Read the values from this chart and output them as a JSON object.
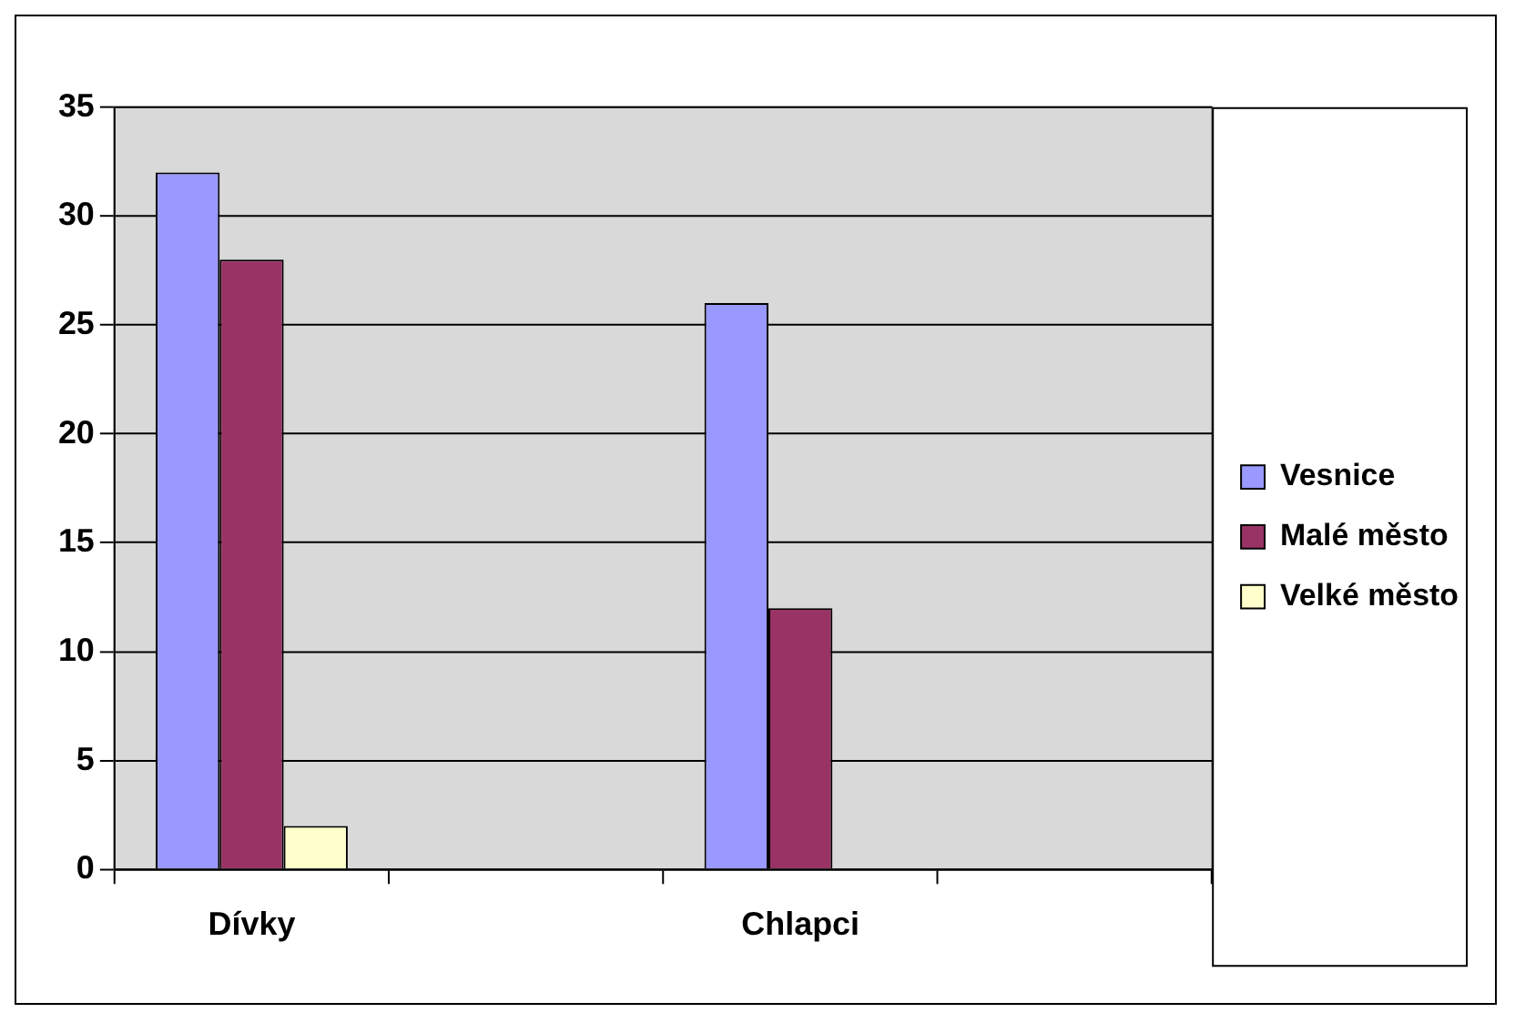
{
  "chart_data": {
    "type": "bar",
    "categories": [
      "Dívky",
      null,
      "Chlapci",
      null
    ],
    "series": [
      {
        "name": "Vesnice",
        "color": "#9999ff",
        "values": [
          32,
          null,
          26,
          null
        ]
      },
      {
        "name": "Malé město",
        "color": "#993366",
        "values": [
          28,
          null,
          12,
          null
        ]
      },
      {
        "name": "Velké město",
        "color": "#ffffcc",
        "values": [
          2,
          null,
          0,
          null
        ]
      }
    ],
    "ylim": [
      0,
      35
    ],
    "yticks": [
      0,
      5,
      10,
      15,
      20,
      25,
      30,
      35
    ],
    "grid": "y",
    "legend": "right"
  }
}
